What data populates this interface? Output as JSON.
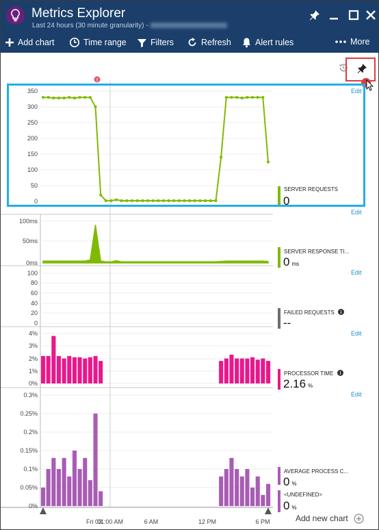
{
  "app": {
    "title": "Metrics Explorer",
    "subtitle": "Last 24 hours (30 minute granularity) -"
  },
  "window_controls": {
    "pin_icon": "pin-icon",
    "minimize_icon": "minimize-icon",
    "maximize_icon": "maximize-icon",
    "close_icon": "close-icon"
  },
  "toolbar": {
    "add_chart": "Add chart",
    "time_range": "Time range",
    "filters": "Filters",
    "refresh": "Refresh",
    "alert_rules": "Alert rules",
    "more": "More"
  },
  "colors": {
    "header_bg": "#1b3f6a",
    "green": "#7fba00",
    "magenta": "#e8188c",
    "purple": "#a85cb4",
    "gray": "#6e6e6e",
    "link": "#1c8fd0",
    "highlight_red": "#e03a3a",
    "select_blue": "#22aee6"
  },
  "x_axis": {
    "ticks": [
      "Fri 03",
      "01:00 AM",
      "6 AM",
      "12 PM",
      "6 PM"
    ]
  },
  "charts": [
    {
      "edit": "Edit",
      "metric_name": "SERVER REQUESTS",
      "metric_value": "0",
      "unit": "",
      "info": false,
      "color": "#7fba00",
      "y_ticks": [
        "350",
        "300",
        "250",
        "200",
        "150",
        "100",
        "50",
        "0"
      ]
    },
    {
      "edit": "Edit",
      "metric_name": "SERVER RESPONSE TI...",
      "metric_value": "0",
      "unit": "ms",
      "info": false,
      "color": "#7fba00",
      "y_ticks": [
        "100ms",
        "50ms",
        "0ms"
      ]
    },
    {
      "edit": "Edit",
      "metric_name": "FAILED REQUESTS",
      "metric_value": "--",
      "unit": "",
      "info": true,
      "color": "#6e6e6e",
      "y_ticks": [
        "100",
        "80",
        "60",
        "40",
        "20",
        "0"
      ]
    },
    {
      "edit": "Edit",
      "metric_name": "PROCESSOR TIME",
      "metric_value": "2.16",
      "unit": "%",
      "info": true,
      "color": "#e8188c",
      "y_ticks": [
        "4%",
        "3%",
        "2%",
        "1%",
        "0%"
      ]
    },
    {
      "edit": "Edit",
      "metric_name": "AVERAGE PROCESS C...",
      "metric_value": "0",
      "unit": "%",
      "info": false,
      "color": "#a85cb4",
      "y_ticks": [
        "0.3%",
        "0.25%",
        "0.2%",
        "0.15%",
        "0.1%",
        "0.05%",
        "0%"
      ],
      "second_metric_name": "<UNDEFINED>",
      "second_metric_value": "0",
      "second_unit": "%"
    }
  ],
  "add_new_chart": "Add new chart",
  "chart_data": [
    {
      "type": "line",
      "name": "SERVER REQUESTS",
      "x": [
        0,
        1,
        2,
        3,
        4,
        5,
        6,
        7,
        8,
        9,
        10,
        11,
        12,
        13,
        14,
        15,
        16,
        17,
        18,
        19,
        20,
        21,
        22,
        23,
        24,
        25,
        26,
        27,
        28,
        29,
        30,
        31,
        32,
        33,
        34,
        35,
        36,
        37,
        38,
        39,
        40,
        41,
        42,
        43
      ],
      "values": [
        330,
        330,
        328,
        328,
        328,
        330,
        328,
        330,
        330,
        330,
        300,
        20,
        2,
        2,
        5,
        2,
        2,
        2,
        2,
        2,
        2,
        2,
        2,
        2,
        2,
        2,
        2,
        2,
        2,
        2,
        2,
        2,
        2,
        2,
        140,
        330,
        330,
        330,
        328,
        330,
        330,
        330,
        330,
        125
      ],
      "ylim": [
        0,
        350
      ]
    },
    {
      "type": "area",
      "name": "SERVER RESPONSE TIME",
      "x": [
        0,
        1,
        2,
        3,
        4,
        5,
        6,
        7,
        8,
        9,
        10,
        11,
        12,
        13,
        14,
        15,
        16,
        17,
        18,
        19,
        20,
        21,
        22,
        23,
        24,
        25,
        26,
        27,
        28,
        29,
        30,
        31,
        32,
        33,
        34,
        35,
        36,
        37,
        38,
        39,
        40,
        41,
        42,
        43
      ],
      "values": [
        5,
        5,
        5,
        5,
        5,
        5,
        5,
        5,
        5,
        8,
        100,
        5,
        3,
        3,
        6,
        3,
        3,
        3,
        3,
        3,
        3,
        3,
        3,
        3,
        3,
        3,
        3,
        3,
        3,
        3,
        3,
        3,
        3,
        3,
        4,
        5,
        5,
        5,
        5,
        5,
        5,
        5,
        5,
        4
      ],
      "ylim": [
        0,
        110
      ],
      "unit": "ms"
    },
    {
      "type": "line",
      "name": "FAILED REQUESTS",
      "x": [],
      "values": [],
      "ylim": [
        0,
        100
      ]
    },
    {
      "type": "bar",
      "name": "PROCESSOR TIME",
      "x": [
        0,
        1,
        2,
        3,
        4,
        5,
        6,
        7,
        8,
        9,
        10,
        11,
        34,
        35,
        36,
        37,
        38,
        39,
        40,
        41,
        42,
        43
      ],
      "values": [
        2.2,
        2.2,
        3.8,
        2.2,
        2.0,
        2.2,
        2.1,
        2.1,
        2.0,
        2.1,
        2.2,
        1.8,
        1.8,
        2.0,
        2.3,
        2.0,
        2.0,
        2.0,
        2.1,
        1.9,
        2.0,
        1.8
      ],
      "ylim": [
        0,
        4
      ],
      "unit": "%"
    },
    {
      "type": "bar",
      "name": "AVERAGE PROCESS C...",
      "x": [
        0,
        1,
        2,
        3,
        4,
        5,
        6,
        7,
        8,
        9,
        10,
        11,
        34,
        35,
        36,
        37,
        38,
        39,
        40,
        41,
        42,
        43
      ],
      "values": [
        0.05,
        0.1,
        0.13,
        0.1,
        0.13,
        0.08,
        0.15,
        0.1,
        0.13,
        0.07,
        0.25,
        0.04,
        0.08,
        0.1,
        0.13,
        0.1,
        0.08,
        0.1,
        0.05,
        0.08,
        0.03,
        0.06
      ],
      "ylim": [
        0,
        0.3
      ],
      "unit": "%"
    }
  ]
}
